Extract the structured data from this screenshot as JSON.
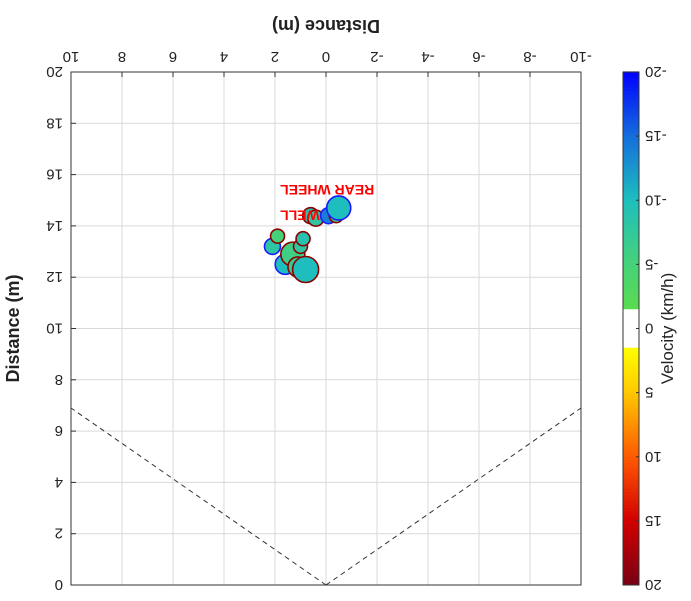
{
  "chart_data": {
    "type": "scatter",
    "title": "",
    "xlabel": "Distance (m)",
    "ylabel": "Distance (m)",
    "xlim": [
      -10,
      10
    ],
    "ylim": [
      0,
      20
    ],
    "xticks": [
      -10,
      -8,
      -6,
      -4,
      -2,
      0,
      2,
      4,
      6,
      8,
      10
    ],
    "yticks": [
      0,
      2,
      4,
      6,
      8,
      10,
      12,
      14,
      16,
      18,
      20
    ],
    "grid": true,
    "y_reversed": true,
    "view_lines": [
      {
        "name": "left-boundary",
        "x": [
          0,
          -10
        ],
        "y": [
          0,
          6.9
        ]
      },
      {
        "name": "right-boundary",
        "x": [
          0,
          10
        ],
        "y": [
          0,
          6.9
        ]
      }
    ],
    "colorbar": {
      "label": "Velocity (km/h)",
      "range": [
        -20,
        20
      ],
      "ticks": [
        -20,
        -15,
        -10,
        -5,
        0,
        5,
        10,
        15,
        20
      ],
      "dead_band": [
        -1.5,
        1.5
      ]
    },
    "annotations": [
      {
        "text": "REAR WHEEL",
        "x": 1.8,
        "y": 15.6
      },
      {
        "text": "WELL",
        "x": 1.8,
        "y": 14.6
      }
    ],
    "points": [
      {
        "x": 2.1,
        "y": 13.2,
        "velocity": -8,
        "size": 8,
        "edge": "blue"
      },
      {
        "x": 1.9,
        "y": 13.6,
        "velocity": -5,
        "size": 7,
        "edge": "darkred"
      },
      {
        "x": 1.6,
        "y": 12.5,
        "velocity": -10,
        "size": 10,
        "edge": "blue"
      },
      {
        "x": 1.3,
        "y": 12.9,
        "velocity": -6,
        "size": 12,
        "edge": "darkred"
      },
      {
        "x": 1.1,
        "y": 12.4,
        "velocity": -7,
        "size": 10,
        "edge": "darkred"
      },
      {
        "x": 1.0,
        "y": 13.2,
        "velocity": -8,
        "size": 7,
        "edge": "darkred"
      },
      {
        "x": 0.9,
        "y": 13.5,
        "velocity": -9,
        "size": 7,
        "edge": "darkred"
      },
      {
        "x": 0.8,
        "y": 12.3,
        "velocity": -10,
        "size": 13,
        "edge": "darkred"
      },
      {
        "x": 0.6,
        "y": 14.4,
        "velocity": -9,
        "size": 8,
        "edge": "darkred"
      },
      {
        "x": 0.4,
        "y": 14.3,
        "velocity": -8,
        "size": 8,
        "edge": "darkred"
      },
      {
        "x": -0.1,
        "y": 14.4,
        "velocity": -14,
        "size": 8,
        "edge": "blue"
      },
      {
        "x": -0.4,
        "y": 14.4,
        "velocity": -6,
        "size": 7,
        "edge": "darkred"
      },
      {
        "x": -0.5,
        "y": 14.7,
        "velocity": -10,
        "size": 12,
        "edge": "blue"
      }
    ]
  }
}
